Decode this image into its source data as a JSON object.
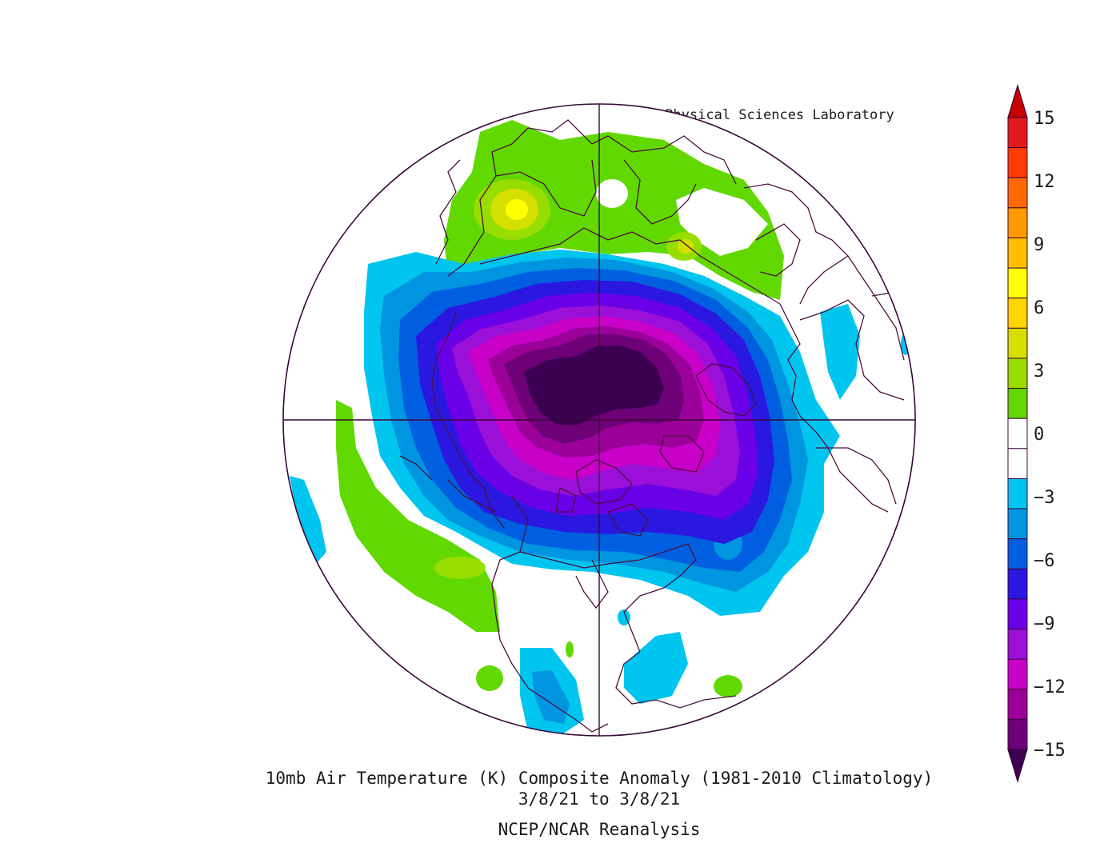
{
  "credit": "NOAA Physical Sciences Laboratory",
  "title": "10mb Air Temperature (K) Composite Anomaly (1981-2010 Climatology)",
  "date_range": "3/8/21  to 3/8/21",
  "source": "NCEP/NCAR Reanalysis",
  "colorbar": {
    "tick_labels": [
      "15",
      "12",
      "9",
      "6",
      "3",
      "0",
      "−3",
      "−6",
      "−9",
      "−12",
      "−15"
    ],
    "bins_top_to_bottom": [
      "#e31a1c",
      "#ff3b00",
      "#ff6a00",
      "#ff9a00",
      "#ffbf00",
      "#ffff00",
      "#ffd500",
      "#d5e000",
      "#98dd00",
      "#61d900",
      "#ffffff",
      "#ffffff",
      "#00c5ef",
      "#0095e0",
      "#005fe0",
      "#2a18e0",
      "#6a00e8",
      "#9b10d8",
      "#c800c8",
      "#9b0099",
      "#6e0078"
    ],
    "over_color": "#c80000",
    "under_color": "#3c0052"
  }
}
